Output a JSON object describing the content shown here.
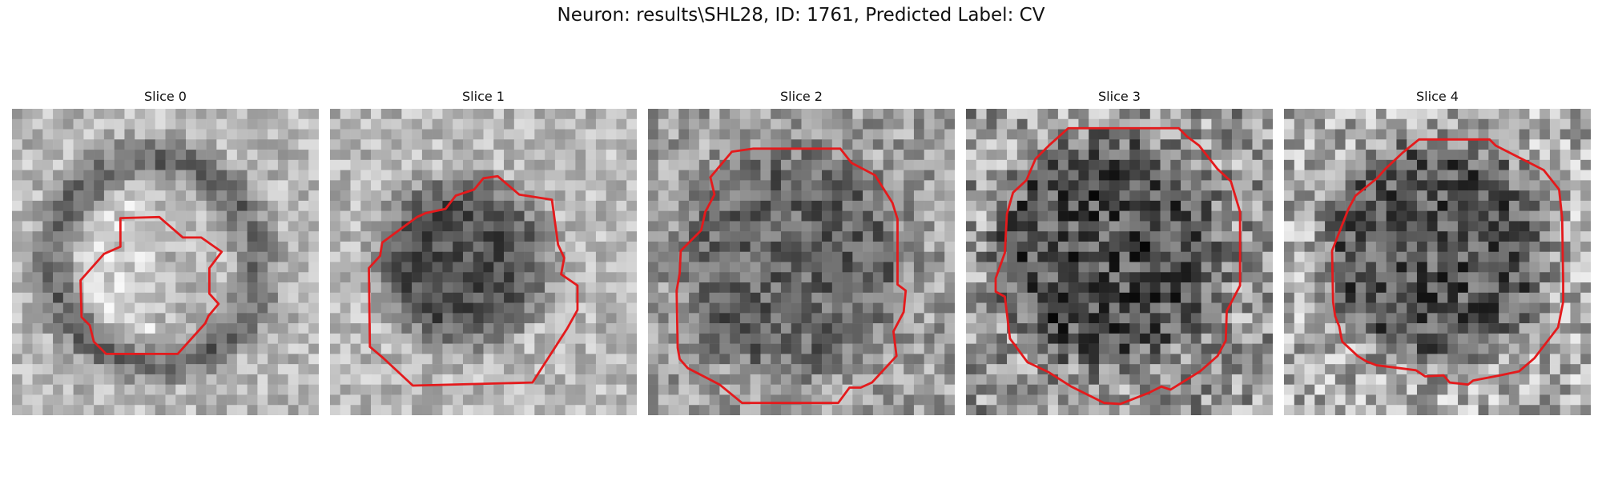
{
  "figure": {
    "title": "Neuron: results\\SHL28, ID: 1761, Predicted Label: CV"
  },
  "slices": [
    {
      "label": "Slice 0"
    },
    {
      "label": "Slice 1"
    },
    {
      "label": "Slice 2"
    },
    {
      "label": "Slice 3"
    },
    {
      "label": "Slice 4"
    }
  ],
  "colors": {
    "contour": "#e41a1c",
    "background": "#ffffff"
  }
}
